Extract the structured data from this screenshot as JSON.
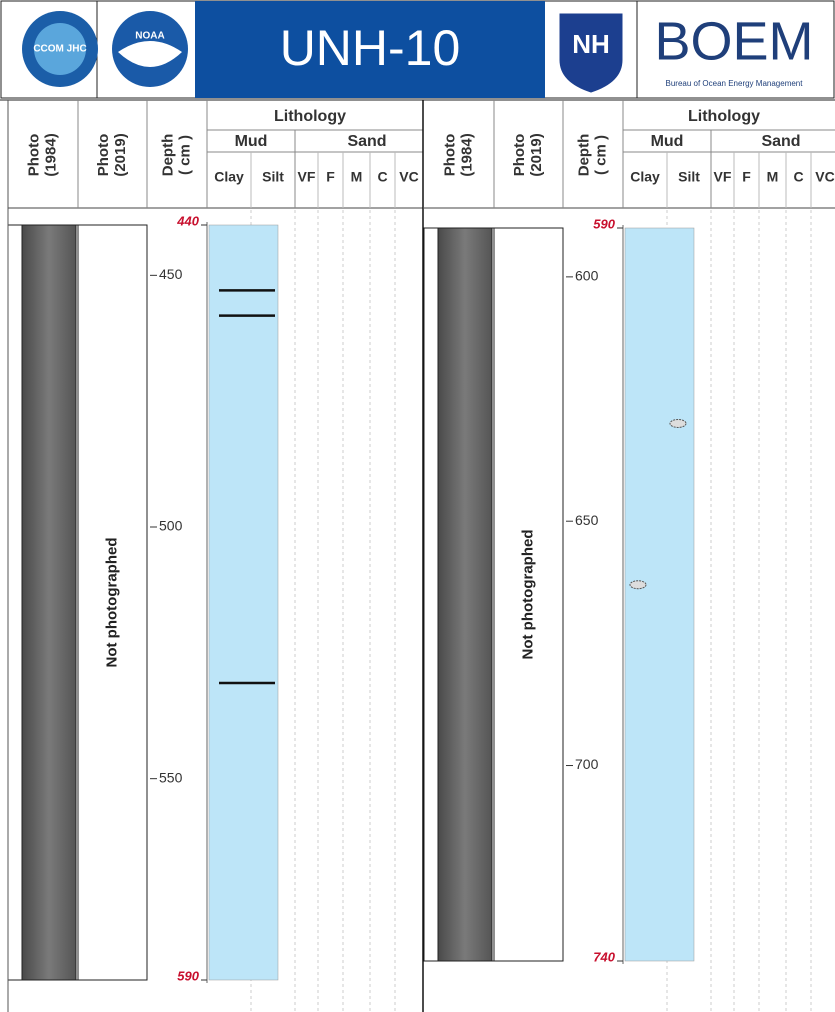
{
  "header": {
    "title": "UNH-10",
    "logos": {
      "ccom": "CCOM JHC",
      "noaa": "NOAA",
      "unh": "NH",
      "boem": "BOEM",
      "boem_subtitle": "Bureau of Ocean Energy Management"
    }
  },
  "panels": [
    {
      "columns": {
        "photo_1984": [
          "Photo",
          "(1984)"
        ],
        "photo_2019": [
          "Photo",
          "(2019)"
        ],
        "depth": [
          "Depth",
          "( cm )"
        ],
        "lithology": "Lithology",
        "mud": "Mud",
        "sand": "Sand",
        "grain_sizes": [
          "Clay",
          "Silt",
          "VF",
          "F",
          "M",
          "C",
          "VC"
        ]
      },
      "depth_lim": [
        440,
        590
      ],
      "depth_ticks": [
        450,
        500,
        550
      ],
      "photo_2019_note": "Not photographed",
      "laminae": [
        453,
        458,
        531
      ]
    },
    {
      "columns": {
        "photo_1984": [
          "Photo",
          "(1984)"
        ],
        "photo_2019": [
          "Photo",
          "(2019)"
        ],
        "depth": [
          "Depth",
          "( cm )"
        ],
        "lithology": "Lithology",
        "mud": "Mud",
        "sand": "Sand",
        "grain_sizes": [
          "Clay",
          "Silt",
          "VF",
          "F",
          "M",
          "C",
          "VC"
        ]
      },
      "depth_lim": [
        590,
        740
      ],
      "depth_ticks": [
        600,
        650,
        700
      ],
      "photo_2019_note": "Not photographed",
      "clasts": [
        630,
        663
      ]
    }
  ]
}
